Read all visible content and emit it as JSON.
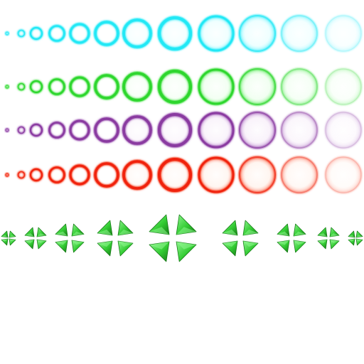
{
  "sprite_sheet": {
    "background": "#ffffff",
    "ring_rows": [
      {
        "name": "cyan-ring-row",
        "color": "#22e8f5",
        "glow": "#7ff6ff",
        "fill": "#e6ffff",
        "frames": 12
      },
      {
        "name": "green-ring-row",
        "color": "#2fd62f",
        "glow": "#8af58a",
        "fill": "#eaffea",
        "frames": 12
      },
      {
        "name": "purple-ring-row",
        "color": "#8a3aa0",
        "glow": "#c89ad8",
        "fill": "#f6ecf8",
        "frames": 12
      },
      {
        "name": "red-ring-row",
        "color": "#f02010",
        "glow": "#ff8a70",
        "fill": "#fff0e8",
        "frames": 12
      }
    ],
    "sparkle_row": {
      "name": "green-sparkle-row",
      "color": "#33cc33",
      "highlight": "#8ef58e",
      "shadow": "#167a16",
      "frames": 11
    }
  }
}
